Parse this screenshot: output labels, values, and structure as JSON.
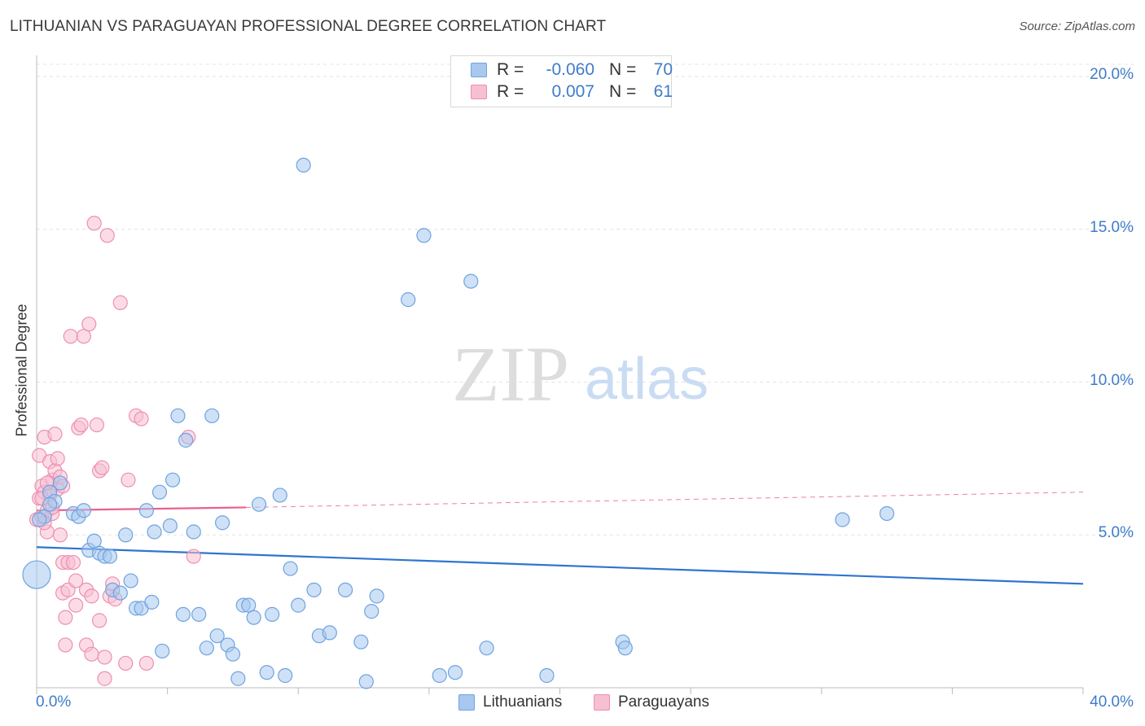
{
  "title": "LITHUANIAN VS PARAGUAYAN PROFESSIONAL DEGREE CORRELATION CHART",
  "source": "Source: ZipAtlas.com",
  "watermark": {
    "zip": "ZIP",
    "atlas": "atlas"
  },
  "legend": {
    "rows": [
      {
        "r_label": "R =",
        "r_value": "-0.060",
        "n_label": "N =",
        "n_value": "70",
        "color": "#6fa3e0"
      },
      {
        "r_label": "R =",
        "r_value": "0.007",
        "n_label": "N =",
        "n_value": "61",
        "color": "#f08fb0"
      }
    ]
  },
  "bottom_legend": [
    {
      "label": "Lithuanians",
      "color": "#6fa3e0"
    },
    {
      "label": "Paraguayans",
      "color": "#f08fb0"
    }
  ],
  "colors": {
    "blue_fill": "#a8c8ef",
    "blue_stroke": "#6fa3e0",
    "blue_line": "#2f74d0",
    "pink_fill": "#f7bfd2",
    "pink_stroke": "#ee8fb0",
    "pink_line": "#e8608f",
    "axis_text": "#3f7cc9"
  },
  "chart_data": {
    "type": "scatter",
    "title": "LITHUANIAN VS PARAGUAYAN PROFESSIONAL DEGREE CORRELATION CHART",
    "xlabel": "",
    "ylabel": "Professional Degree",
    "xlim": [
      0,
      40
    ],
    "ylim": [
      0,
      20
    ],
    "x_tick_labels": [
      "0.0%",
      "40.0%"
    ],
    "y_tick_values": [
      5,
      10,
      15,
      20
    ],
    "y_tick_labels": [
      "5.0%",
      "10.0%",
      "15.0%",
      "20.0%"
    ],
    "grid": true,
    "legend_position": "top-center",
    "series": [
      {
        "name": "Lithuanians",
        "r": -0.06,
        "n": 70,
        "trend": {
          "x": [
            0,
            40
          ],
          "y": [
            4.6,
            3.4
          ]
        },
        "points": [
          [
            0.0,
            3.7
          ],
          [
            0.3,
            5.6
          ],
          [
            0.5,
            6.4
          ],
          [
            0.7,
            6.1
          ],
          [
            0.9,
            6.7
          ],
          [
            0.5,
            6.0
          ],
          [
            1.4,
            5.7
          ],
          [
            1.6,
            5.6
          ],
          [
            1.8,
            5.8
          ],
          [
            2.0,
            4.5
          ],
          [
            2.2,
            4.8
          ],
          [
            2.4,
            4.4
          ],
          [
            2.6,
            4.3
          ],
          [
            2.8,
            4.3
          ],
          [
            2.9,
            3.2
          ],
          [
            3.2,
            3.1
          ],
          [
            3.4,
            5.0
          ],
          [
            3.6,
            3.5
          ],
          [
            3.8,
            2.6
          ],
          [
            4.0,
            2.6
          ],
          [
            4.2,
            5.8
          ],
          [
            4.4,
            2.8
          ],
          [
            4.5,
            5.1
          ],
          [
            4.7,
            6.4
          ],
          [
            4.8,
            1.2
          ],
          [
            5.1,
            5.3
          ],
          [
            5.2,
            6.8
          ],
          [
            5.4,
            8.9
          ],
          [
            5.6,
            2.4
          ],
          [
            5.7,
            8.1
          ],
          [
            6.0,
            5.1
          ],
          [
            6.2,
            2.4
          ],
          [
            6.5,
            1.3
          ],
          [
            6.7,
            8.9
          ],
          [
            6.9,
            1.7
          ],
          [
            7.1,
            5.4
          ],
          [
            7.3,
            1.4
          ],
          [
            7.5,
            1.1
          ],
          [
            7.7,
            0.3
          ],
          [
            7.9,
            2.7
          ],
          [
            8.1,
            2.7
          ],
          [
            8.3,
            2.3
          ],
          [
            8.5,
            6.0
          ],
          [
            8.8,
            0.5
          ],
          [
            9.0,
            2.4
          ],
          [
            9.3,
            6.3
          ],
          [
            9.5,
            0.4
          ],
          [
            9.7,
            3.9
          ],
          [
            10.0,
            2.7
          ],
          [
            10.2,
            17.1
          ],
          [
            10.6,
            3.2
          ],
          [
            10.8,
            1.7
          ],
          [
            11.2,
            1.8
          ],
          [
            11.8,
            3.2
          ],
          [
            12.4,
            1.5
          ],
          [
            12.6,
            0.2
          ],
          [
            12.8,
            2.5
          ],
          [
            13.0,
            3.0
          ],
          [
            14.2,
            12.7
          ],
          [
            14.8,
            14.8
          ],
          [
            15.4,
            0.4
          ],
          [
            16.0,
            0.5
          ],
          [
            16.6,
            13.3
          ],
          [
            17.2,
            1.3
          ],
          [
            19.5,
            0.4
          ],
          [
            22.4,
            1.5
          ],
          [
            22.5,
            1.3
          ],
          [
            30.8,
            5.5
          ],
          [
            32.5,
            5.7
          ],
          [
            0.1,
            5.5
          ]
        ]
      },
      {
        "name": "Paraguayans",
        "r": 0.007,
        "n": 61,
        "trend": {
          "x": [
            0,
            8
          ],
          "y": [
            5.8,
            5.9
          ],
          "dashed_x": [
            8,
            40
          ],
          "dashed_y": [
            5.9,
            6.4
          ]
        },
        "points": [
          [
            0.0,
            5.5
          ],
          [
            0.1,
            6.2
          ],
          [
            0.1,
            7.6
          ],
          [
            0.2,
            6.6
          ],
          [
            0.2,
            5.6
          ],
          [
            0.3,
            6.4
          ],
          [
            0.3,
            8.2
          ],
          [
            0.4,
            5.8
          ],
          [
            0.4,
            5.1
          ],
          [
            0.5,
            7.4
          ],
          [
            0.6,
            6.8
          ],
          [
            0.6,
            5.7
          ],
          [
            0.7,
            8.3
          ],
          [
            0.7,
            7.1
          ],
          [
            0.8,
            7.5
          ],
          [
            0.8,
            6.5
          ],
          [
            0.9,
            6.9
          ],
          [
            0.9,
            5.0
          ],
          [
            1.0,
            4.1
          ],
          [
            1.0,
            3.1
          ],
          [
            1.1,
            2.3
          ],
          [
            1.1,
            1.4
          ],
          [
            1.2,
            4.1
          ],
          [
            1.2,
            3.2
          ],
          [
            1.3,
            11.5
          ],
          [
            1.4,
            4.1
          ],
          [
            1.5,
            3.5
          ],
          [
            1.5,
            2.7
          ],
          [
            1.6,
            8.5
          ],
          [
            1.7,
            8.6
          ],
          [
            1.8,
            11.5
          ],
          [
            1.9,
            3.2
          ],
          [
            1.9,
            1.4
          ],
          [
            2.0,
            11.9
          ],
          [
            2.1,
            3.0
          ],
          [
            2.1,
            1.1
          ],
          [
            2.2,
            15.2
          ],
          [
            2.3,
            8.6
          ],
          [
            2.4,
            7.1
          ],
          [
            2.4,
            2.2
          ],
          [
            2.5,
            7.2
          ],
          [
            2.6,
            1.0
          ],
          [
            2.6,
            0.3
          ],
          [
            2.7,
            14.8
          ],
          [
            2.8,
            3.0
          ],
          [
            2.9,
            3.4
          ],
          [
            3.0,
            2.9
          ],
          [
            3.2,
            12.6
          ],
          [
            3.4,
            0.8
          ],
          [
            3.5,
            6.8
          ],
          [
            3.8,
            8.9
          ],
          [
            4.0,
            8.8
          ],
          [
            4.2,
            0.8
          ],
          [
            5.8,
            8.2
          ],
          [
            6.0,
            4.3
          ],
          [
            0.5,
            6.3
          ],
          [
            0.6,
            5.9
          ],
          [
            1.0,
            6.6
          ],
          [
            0.2,
            6.2
          ],
          [
            0.3,
            5.4
          ],
          [
            0.4,
            6.7
          ]
        ]
      }
    ]
  }
}
